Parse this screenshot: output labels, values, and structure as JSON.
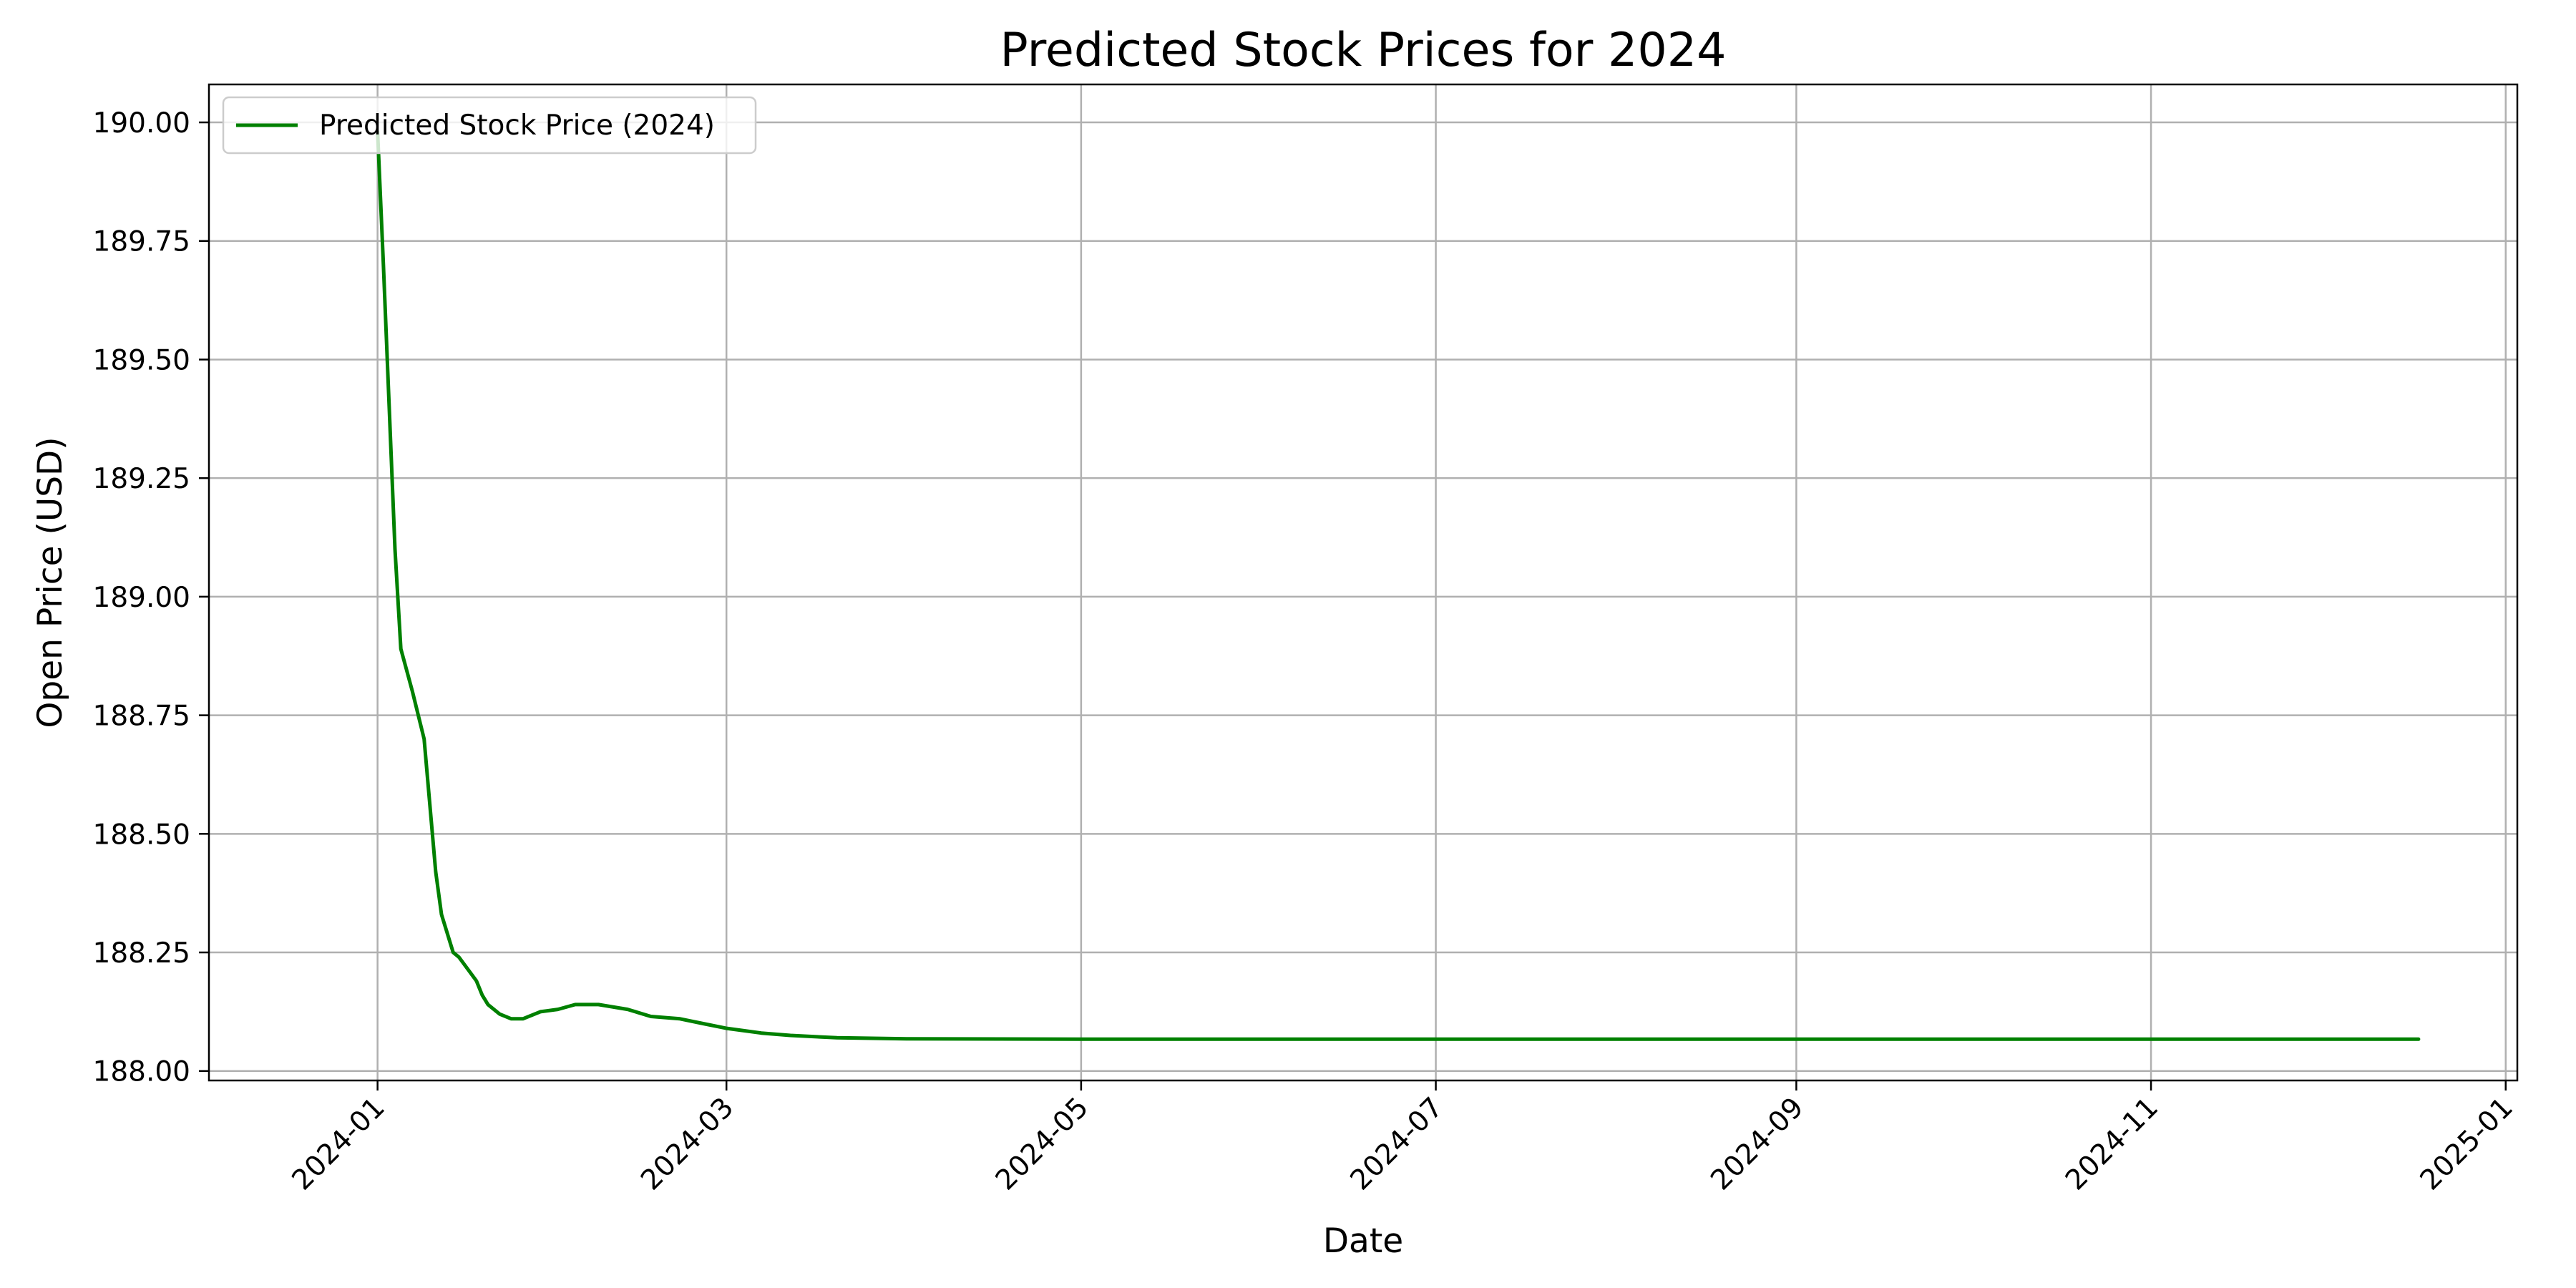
{
  "chart_data": {
    "type": "line",
    "title": "Predicted Stock Prices for 2024",
    "xlabel": "Date",
    "ylabel": "Open Price (USD)",
    "xlim": [
      "2023-12-03",
      "2025-01-03"
    ],
    "ylim": [
      187.98,
      190.08
    ],
    "grid": true,
    "legend_position": "top-left",
    "x_ticks": [
      "2024-01-01",
      "2024-03-01",
      "2024-05-01",
      "2024-07-01",
      "2024-09-01",
      "2024-11-01",
      "2025-01-01"
    ],
    "x_tick_labels": [
      "2024-01",
      "2024-03",
      "2024-05",
      "2024-07",
      "2024-09",
      "2024-11",
      "2025-01"
    ],
    "y_ticks": [
      188.0,
      188.25,
      188.5,
      188.75,
      189.0,
      189.25,
      189.5,
      189.75,
      190.0
    ],
    "y_tick_labels": [
      "188.00",
      "188.25",
      "188.50",
      "188.75",
      "189.00",
      "189.25",
      "189.50",
      "189.75",
      "190.00"
    ],
    "series": [
      {
        "name": "Predicted Stock Price (2024)",
        "color": "#008000",
        "x": [
          "2024-01-01",
          "2024-01-02",
          "2024-01-03",
          "2024-01-04",
          "2024-01-05",
          "2024-01-07",
          "2024-01-09",
          "2024-01-11",
          "2024-01-12",
          "2024-01-14",
          "2024-01-15",
          "2024-01-18",
          "2024-01-19",
          "2024-01-20",
          "2024-01-22",
          "2024-01-24",
          "2024-01-26",
          "2024-01-29",
          "2024-02-01",
          "2024-02-04",
          "2024-02-08",
          "2024-02-13",
          "2024-02-17",
          "2024-02-22",
          "2024-02-26",
          "2024-03-01",
          "2024-03-07",
          "2024-03-12",
          "2024-03-20",
          "2024-04-01",
          "2024-05-01",
          "2024-07-01",
          "2024-09-01",
          "2024-11-01",
          "2024-12-17"
        ],
        "y": [
          189.98,
          189.7,
          189.4,
          189.1,
          188.89,
          188.8,
          188.7,
          188.42,
          188.33,
          188.25,
          188.24,
          188.19,
          188.16,
          188.14,
          188.12,
          188.11,
          188.11,
          188.125,
          188.13,
          188.14,
          188.14,
          188.13,
          188.115,
          188.11,
          188.1,
          188.09,
          188.08,
          188.075,
          188.07,
          188.068,
          188.067,
          188.067,
          188.067,
          188.067,
          188.067
        ]
      }
    ]
  }
}
